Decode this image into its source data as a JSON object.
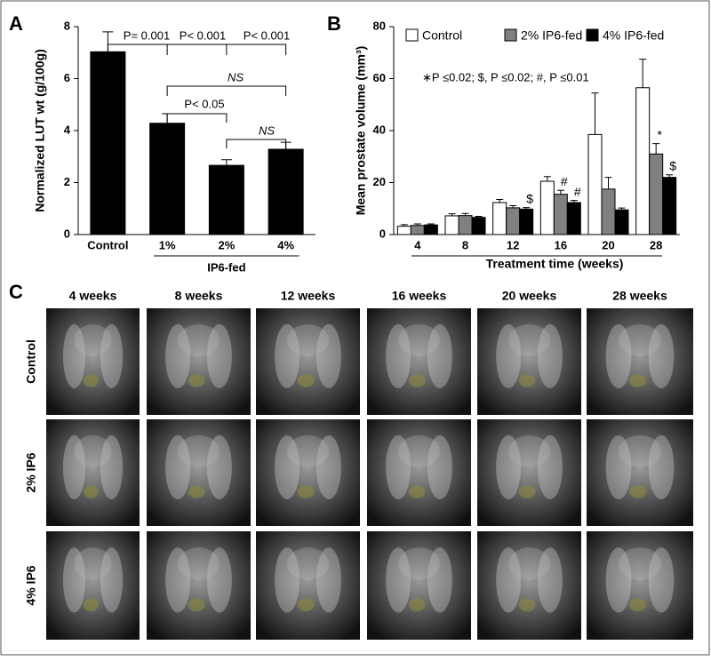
{
  "chart_data": [
    {
      "type": "bar",
      "panel": "A",
      "ylabel": "Normalized LUT wt (g/100g)",
      "categories": [
        "Control",
        "1%",
        "2%",
        "4%"
      ],
      "group_label": "IP6-fed",
      "values": [
        7.05,
        4.3,
        2.68,
        3.3
      ],
      "errors": [
        0.75,
        0.35,
        0.2,
        0.25
      ],
      "color": "#000000",
      "ylim": [
        0,
        8
      ],
      "yticks": [
        0,
        2,
        4,
        6,
        8
      ],
      "annotations": [
        "P= 0.001",
        "P< 0.001",
        "P< 0.001",
        "NS",
        "P< 0.05",
        "NS"
      ]
    },
    {
      "type": "bar",
      "panel": "B",
      "ylabel": "Mean prostate volume (mm³)",
      "xlabel": "Treatment time (weeks)",
      "categories": [
        "4",
        "8",
        "12",
        "16",
        "20",
        "28"
      ],
      "series": [
        {
          "name": "Control",
          "color": "#ffffff",
          "values": [
            3.2,
            7.2,
            12.3,
            20.5,
            38.5,
            56.5
          ],
          "errors": [
            0.6,
            0.8,
            1.2,
            1.8,
            16,
            11
          ]
        },
        {
          "name": "2% IP6-fed",
          "color": "#808080",
          "values": [
            3.5,
            7.3,
            10.3,
            15.5,
            17.5,
            31
          ],
          "errors": [
            0.6,
            0.8,
            0.8,
            1.5,
            4.5,
            4
          ]
        },
        {
          "name": "4% IP6-fed",
          "color": "#000000",
          "values": [
            3.7,
            6.6,
            9.8,
            12.3,
            9.5,
            22
          ],
          "errors": [
            0.4,
            0.4,
            0.6,
            0.8,
            0.7,
            1
          ]
        }
      ],
      "ylim": [
        0,
        80
      ],
      "yticks": [
        0,
        20,
        40,
        60,
        80
      ],
      "note": "∗P ≤0.02; $, P ≤0.02; #, P ≤0.01",
      "annotations": [
        "$",
        "#",
        "#",
        "*",
        "$"
      ]
    }
  ],
  "panel_c": {
    "panel": "C",
    "columns": [
      "4 weeks",
      "8 weeks",
      "12 weeks",
      "16 weeks",
      "20 weeks",
      "28 weeks"
    ],
    "rows": [
      "Control",
      "2% IP6",
      "4% IP6"
    ]
  }
}
